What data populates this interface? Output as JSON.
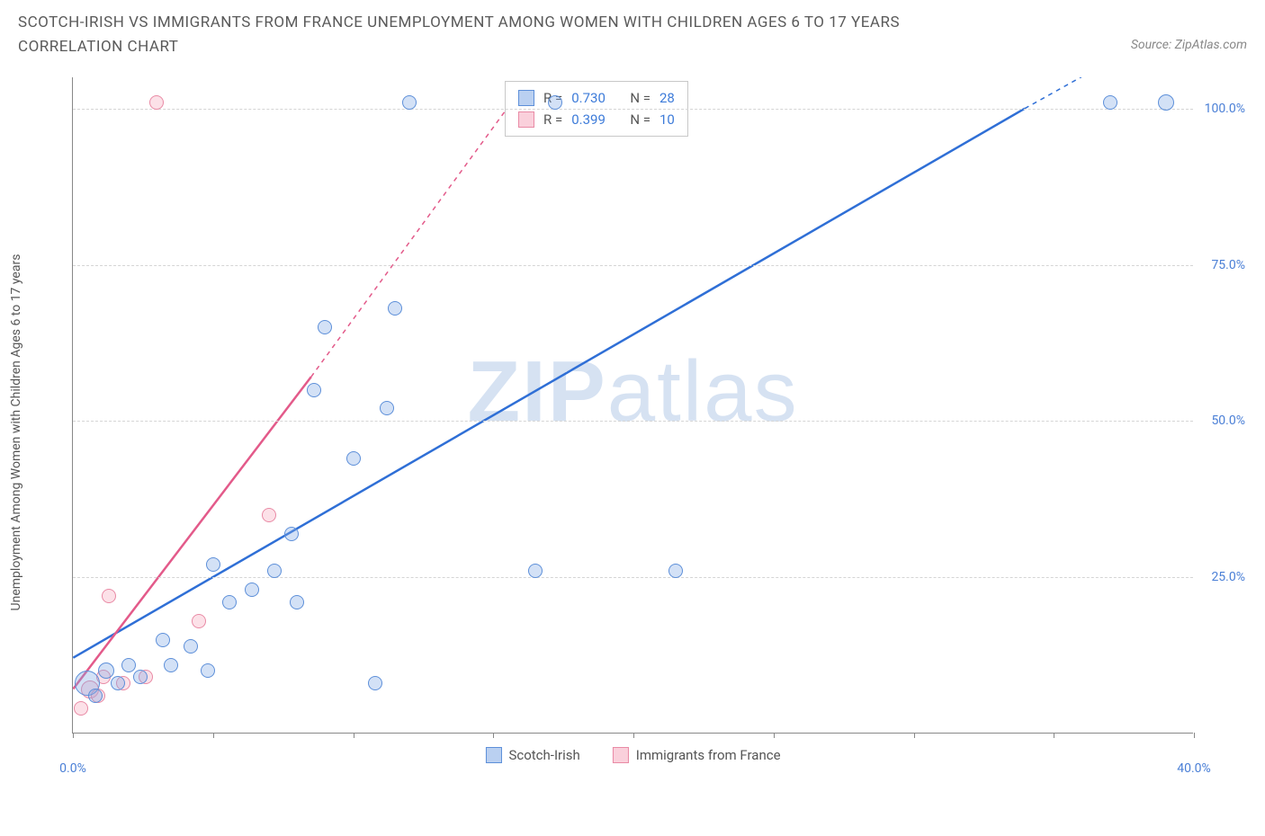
{
  "title": "SCOTCH-IRISH VS IMMIGRANTS FROM FRANCE UNEMPLOYMENT AMONG WOMEN WITH CHILDREN AGES 6 TO 17 YEARS CORRELATION CHART",
  "source_credit": "Source: ZipAtlas.com",
  "y_axis_label": "Unemployment Among Women with Children Ages 6 to 17 years",
  "watermark_bold": "ZIP",
  "watermark_rest": "atlas",
  "chart": {
    "type": "scatter",
    "xlim": [
      0,
      40
    ],
    "ylim": [
      0,
      105
    ],
    "x_ticks": [
      0,
      5,
      10,
      15,
      20,
      25,
      30,
      35,
      40
    ],
    "x_tick_labels": {
      "0": "0.0%",
      "40": "40.0%"
    },
    "y_ticks": [
      25,
      50,
      75,
      100
    ],
    "y_tick_labels": {
      "25": "25.0%",
      "50": "50.0%",
      "75": "75.0%",
      "100": "100.0%"
    },
    "grid_color": "#d5d5d5",
    "background_color": "#ffffff",
    "axis_color": "#888888",
    "tick_label_color": "#4a7fd6",
    "series": {
      "blue": {
        "label": "Scotch-Irish",
        "color_fill": "rgba(130,170,230,0.35)",
        "color_stroke": "#5d8fd9",
        "marker_radius": 8,
        "trend": {
          "x1": 0,
          "y1": 12,
          "x2": 34,
          "y2": 100,
          "dash_after_x": 34,
          "dash_to_x": 40,
          "dash_to_y": 115,
          "color": "#2f6fd6",
          "width": 2.5
        },
        "points": [
          {
            "x": 0.5,
            "y": 8,
            "r": 14
          },
          {
            "x": 0.8,
            "y": 6,
            "r": 8
          },
          {
            "x": 1.2,
            "y": 10,
            "r": 9
          },
          {
            "x": 1.6,
            "y": 8,
            "r": 8
          },
          {
            "x": 2.0,
            "y": 11,
            "r": 8
          },
          {
            "x": 2.4,
            "y": 9,
            "r": 8
          },
          {
            "x": 3.2,
            "y": 15,
            "r": 8
          },
          {
            "x": 3.5,
            "y": 11,
            "r": 8
          },
          {
            "x": 4.2,
            "y": 14,
            "r": 8
          },
          {
            "x": 4.8,
            "y": 10,
            "r": 8
          },
          {
            "x": 5.0,
            "y": 27,
            "r": 8
          },
          {
            "x": 5.6,
            "y": 21,
            "r": 8
          },
          {
            "x": 6.4,
            "y": 23,
            "r": 8
          },
          {
            "x": 7.2,
            "y": 26,
            "r": 8
          },
          {
            "x": 7.8,
            "y": 32,
            "r": 8
          },
          {
            "x": 8.0,
            "y": 21,
            "r": 8
          },
          {
            "x": 8.6,
            "y": 55,
            "r": 8
          },
          {
            "x": 9.0,
            "y": 65,
            "r": 8
          },
          {
            "x": 10.0,
            "y": 44,
            "r": 8
          },
          {
            "x": 10.8,
            "y": 8,
            "r": 8
          },
          {
            "x": 11.2,
            "y": 52,
            "r": 8
          },
          {
            "x": 11.5,
            "y": 68,
            "r": 8
          },
          {
            "x": 12.0,
            "y": 101,
            "r": 8
          },
          {
            "x": 16.5,
            "y": 26,
            "r": 8
          },
          {
            "x": 17.2,
            "y": 101,
            "r": 8
          },
          {
            "x": 21.5,
            "y": 26,
            "r": 8
          },
          {
            "x": 37.0,
            "y": 101,
            "r": 8
          },
          {
            "x": 39.0,
            "y": 101,
            "r": 9
          }
        ]
      },
      "pink": {
        "label": "Immigrants from France",
        "color_fill": "rgba(245,170,190,0.35)",
        "color_stroke": "#e98aa5",
        "marker_radius": 8,
        "trend": {
          "x1": 0,
          "y1": 7,
          "x2": 8.5,
          "y2": 57,
          "dash_after_x": 8.5,
          "dash_to_x": 15.5,
          "dash_to_y": 100,
          "color": "#e35a8a",
          "width": 2.5
        },
        "points": [
          {
            "x": 0.3,
            "y": 4,
            "r": 8
          },
          {
            "x": 0.6,
            "y": 7,
            "r": 10
          },
          {
            "x": 0.9,
            "y": 6,
            "r": 8
          },
          {
            "x": 1.1,
            "y": 9,
            "r": 8
          },
          {
            "x": 1.3,
            "y": 22,
            "r": 8
          },
          {
            "x": 1.8,
            "y": 8,
            "r": 8
          },
          {
            "x": 2.6,
            "y": 9,
            "r": 8
          },
          {
            "x": 3.0,
            "y": 101,
            "r": 8
          },
          {
            "x": 4.5,
            "y": 18,
            "r": 8
          },
          {
            "x": 7.0,
            "y": 35,
            "r": 8
          }
        ]
      }
    },
    "stats": [
      {
        "series": "blue",
        "R": "0.730",
        "N": "28"
      },
      {
        "series": "pink",
        "R": "0.399",
        "N": "10"
      }
    ],
    "legend_items": [
      {
        "swatch": "blue",
        "label": "Scotch-Irish"
      },
      {
        "swatch": "pink",
        "label": "Immigrants from France"
      }
    ],
    "stat_labels": {
      "R": "R =",
      "N": "N ="
    }
  }
}
